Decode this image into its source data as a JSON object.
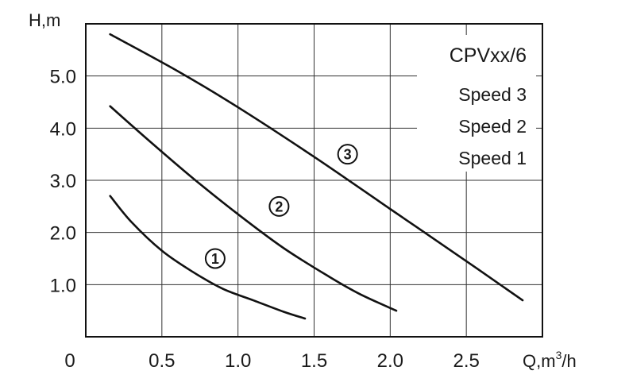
{
  "chart_data": {
    "type": "line",
    "title": "CPVxx/6",
    "xlabel_prefix": "Q,m",
    "xlabel_sup": "3",
    "xlabel_suffix": "/h",
    "ylabel": "H,m",
    "xlim": [
      0,
      3.0
    ],
    "ylim": [
      0,
      6.0
    ],
    "grid": true,
    "x_ticks": [
      "0",
      "0.5",
      "1.0",
      "1.5",
      "2.0",
      "2.5"
    ],
    "x_tick_values": [
      0,
      0.5,
      1.0,
      1.5,
      2.0,
      2.5
    ],
    "y_ticks": [
      "1.0",
      "2.0",
      "3.0",
      "4.0",
      "5.0"
    ],
    "y_tick_values": [
      1,
      2,
      3,
      4,
      5
    ],
    "legend_entries": [
      "Speed 3",
      "Speed 2",
      "Speed 1"
    ],
    "legend_position": "top-right",
    "series": [
      {
        "marker": "1",
        "marker_at": [
          0.85,
          1.5
        ],
        "x": [
          0.16,
          0.3,
          0.5,
          0.7,
          0.9,
          1.1,
          1.3,
          1.44
        ],
        "y": [
          2.7,
          2.2,
          1.65,
          1.25,
          0.92,
          0.7,
          0.48,
          0.35
        ]
      },
      {
        "marker": "2",
        "marker_at": [
          1.27,
          2.5
        ],
        "x": [
          0.16,
          0.4,
          0.7,
          1.0,
          1.3,
          1.6,
          1.8,
          2.04
        ],
        "y": [
          4.42,
          3.8,
          3.05,
          2.35,
          1.7,
          1.15,
          0.82,
          0.5
        ]
      },
      {
        "marker": "3",
        "marker_at": [
          1.72,
          3.5
        ],
        "x": [
          0.16,
          0.6,
          1.0,
          1.5,
          2.0,
          2.5,
          2.87
        ],
        "y": [
          5.8,
          5.1,
          4.4,
          3.45,
          2.45,
          1.45,
          0.7
        ]
      }
    ]
  }
}
